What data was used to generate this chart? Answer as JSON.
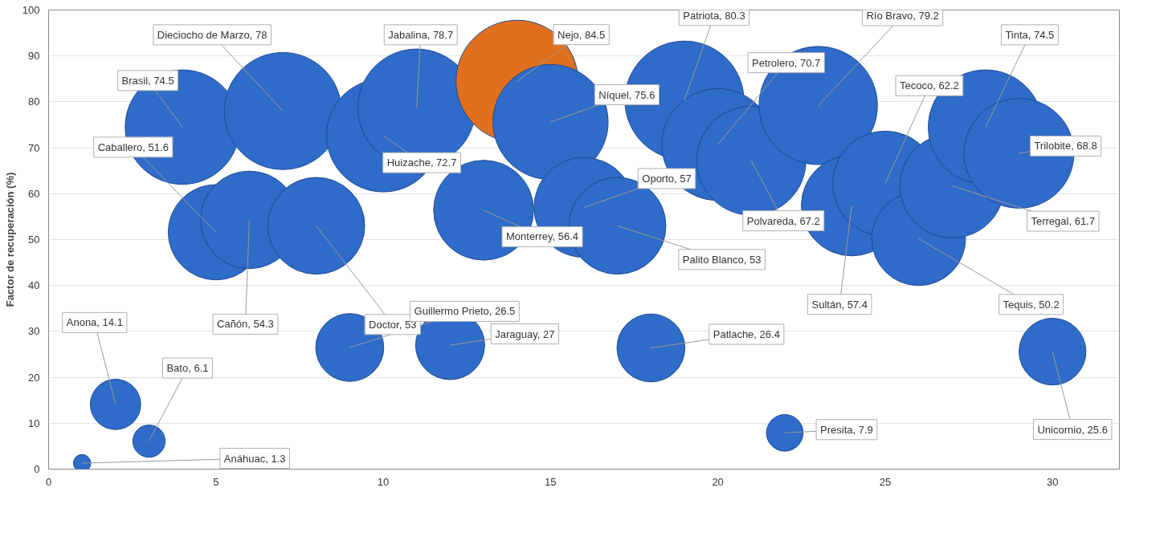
{
  "chart_data": {
    "type": "bubble",
    "ylabel": "Factor de recuperación (%)",
    "x": [
      1,
      2,
      3,
      4,
      5,
      6,
      7,
      8,
      9,
      10,
      11,
      12,
      13,
      14,
      15,
      16,
      17,
      18,
      19,
      20,
      21,
      22,
      23,
      24,
      25,
      26,
      27,
      28,
      29,
      30
    ],
    "values": [
      1.3,
      14.1,
      6.1,
      74.5,
      51.6,
      54.3,
      78,
      53,
      26.5,
      72.7,
      78.7,
      27,
      56.4,
      84.5,
      75.6,
      57,
      53,
      26.4,
      80.3,
      70.7,
      67.2,
      7.9,
      79.2,
      57.4,
      62.2,
      50.2,
      61.7,
      74.5,
      68.8,
      25.6
    ],
    "sizes": [
      0.02,
      0.17,
      0.07,
      0.88,
      0.61,
      0.64,
      0.92,
      0.63,
      0.31,
      0.86,
      0.93,
      0.32,
      0.67,
      1,
      0.89,
      0.67,
      0.63,
      0.31,
      0.95,
      0.84,
      0.8,
      0.09,
      0.94,
      0.68,
      0.74,
      0.59,
      0.73,
      0.88,
      0.81,
      0.3
    ],
    "colors": [
      "#2f6bc8",
      "#2f6bc8",
      "#2f6bc8",
      "#2f6bc8",
      "#2f6bc8",
      "#2f6bc8",
      "#2f6bc8",
      "#2f6bc8",
      "#2f6bc8",
      "#2f6bc8",
      "#2f6bc8",
      "#2f6bc8",
      "#2f6bc8",
      "#e0701e",
      "#2f6bc8",
      "#2f6bc8",
      "#2f6bc8",
      "#2f6bc8",
      "#2f6bc8",
      "#2f6bc8",
      "#2f6bc8",
      "#2f6bc8",
      "#2f6bc8",
      "#2f6bc8",
      "#2f6bc8",
      "#2f6bc8",
      "#2f6bc8",
      "#2f6bc8",
      "#2f6bc8",
      "#2f6bc8"
    ],
    "value_labels": [
      "Anáhuac, 1.3",
      "Anona, 14.1",
      "Bato, 6.1",
      "Brasil, 74.5",
      "Caballero, 51.6",
      "Cañón, 54.3",
      "Dieciocho de Marzo, 78",
      "Doctor, 53",
      "Guillermo Prieto, 26.5",
      "Huizache, 72.7",
      "Jabalina, 78.7",
      "Jaraguay, 27",
      "Monterrey, 56.4",
      "Nejo, 84.5",
      "Níquel, 75.6",
      "Oporto, 57",
      "Palito Blanco, 53",
      "Patlache, 26.4",
      "Patriota, 80.3",
      "Petrolero, 70.7",
      "Polvareda, 67.2",
      "Presita, 7.9",
      "Río Bravo, 79.2",
      "Sultán, 57.4",
      "Tecoco, 62.2",
      "Tequis, 50.2",
      "Terregal, 61.7",
      "Tinta, 74.5",
      "Trilobite, 68.8",
      "Unicornio, 25.6"
    ],
    "xlim": [
      0,
      32
    ],
    "ylim": [
      0,
      100
    ],
    "xticks": [
      0,
      5,
      10,
      15,
      20,
      25,
      30
    ],
    "yticks": [
      0,
      10,
      20,
      30,
      40,
      50,
      60,
      70,
      80,
      90,
      100
    ],
    "grid": "y"
  }
}
